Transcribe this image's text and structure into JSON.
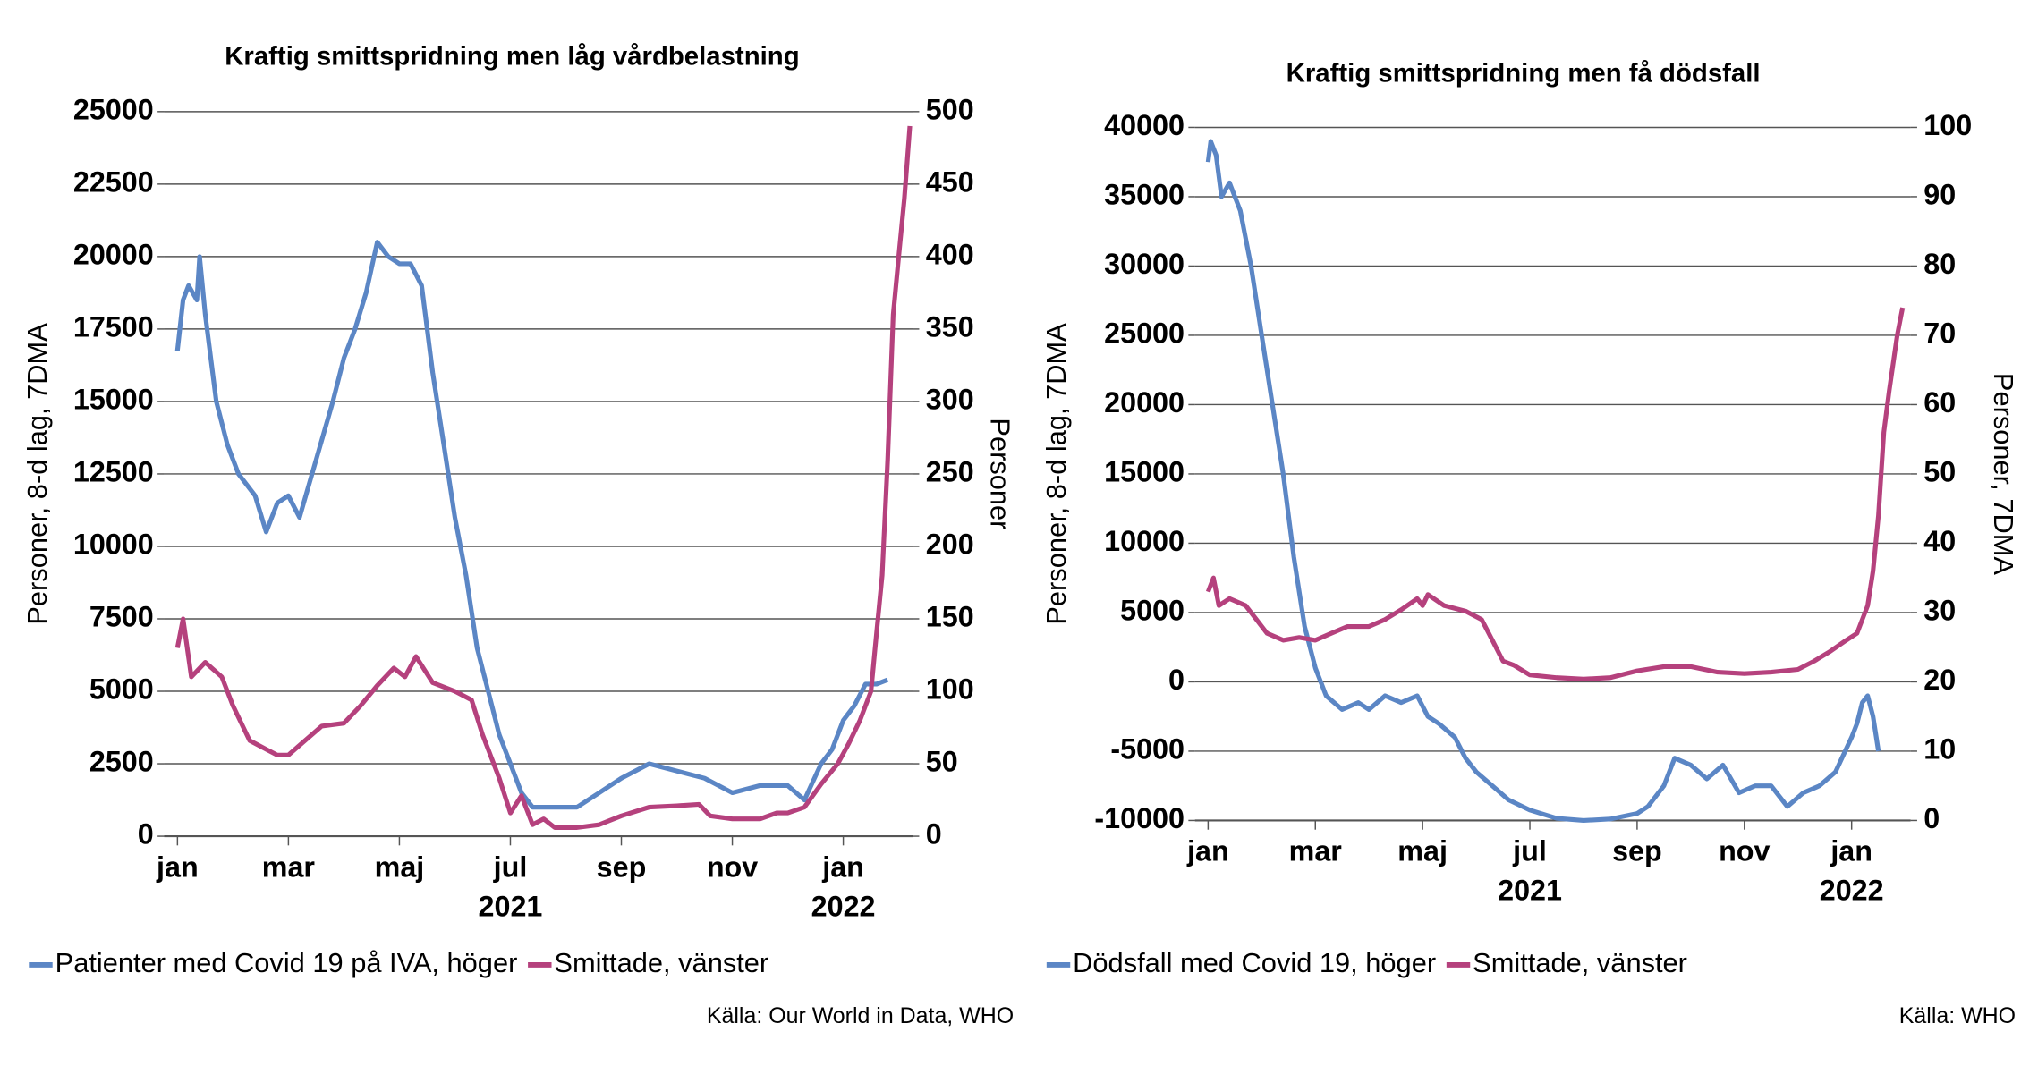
{
  "chart_data": [
    {
      "type": "line",
      "title": "Kraftig smittspridning men låg vårdbelastning",
      "ylabel": "Personer, 8-d lag, 7DMA",
      "y2label": "Personer",
      "xlim": [
        -0.24,
        13.25
      ],
      "xticks": [
        {
          "value": 0,
          "label": "jan"
        },
        {
          "value": 2,
          "label": "mar"
        },
        {
          "value": 4,
          "label": "maj"
        },
        {
          "value": 6,
          "label": "jul"
        },
        {
          "value": 8,
          "label": "sep"
        },
        {
          "value": 10,
          "label": "nov"
        },
        {
          "value": 12,
          "label": "jan"
        }
      ],
      "x_group_labels": [
        {
          "value": 6,
          "label": "2021"
        },
        {
          "value": 12,
          "label": "2022"
        }
      ],
      "ylim": [
        0,
        25000
      ],
      "yticks": [
        0,
        2500,
        5000,
        7500,
        10000,
        12500,
        15000,
        17500,
        20000,
        22500,
        25000
      ],
      "y2lim": [
        0,
        500
      ],
      "y2ticks": [
        0,
        50,
        100,
        150,
        200,
        250,
        300,
        350,
        400,
        450,
        500
      ],
      "grid": true,
      "series": [
        {
          "name": "Patienter med Covid 19 på IVA, höger",
          "color": "#5b86c5",
          "axis": "y2",
          "x": [
            0,
            0.1,
            0.2,
            0.35,
            0.4,
            0.5,
            0.7,
            0.9,
            1.1,
            1.4,
            1.6,
            1.8,
            2,
            2.2,
            2.5,
            2.8,
            3,
            3.2,
            3.4,
            3.6,
            3.8,
            4,
            4.2,
            4.4,
            4.6,
            4.8,
            5,
            5.2,
            5.4,
            5.6,
            5.8,
            6,
            6.2,
            6.4,
            6.8,
            7.2,
            7.6,
            8,
            8.5,
            9,
            9.5,
            10,
            10.5,
            11,
            11.3,
            11.6,
            11.8,
            12,
            12.2,
            12.4,
            12.6,
            12.8
          ],
          "values": [
            335,
            370,
            380,
            370,
            400,
            360,
            300,
            270,
            250,
            235,
            210,
            230,
            235,
            220,
            260,
            300,
            330,
            350,
            375,
            410,
            400,
            395,
            395,
            380,
            320,
            270,
            220,
            180,
            130,
            100,
            70,
            50,
            30,
            20,
            20,
            20,
            30,
            40,
            50,
            45,
            40,
            30,
            35,
            35,
            25,
            50,
            60,
            80,
            90,
            105,
            105,
            108
          ]
        },
        {
          "name": "Smittade, vänster",
          "color": "#b5417d",
          "axis": "y",
          "x": [
            0,
            0.1,
            0.25,
            0.5,
            0.8,
            1,
            1.3,
            1.6,
            1.8,
            2,
            2.3,
            2.6,
            3,
            3.3,
            3.6,
            3.9,
            4.1,
            4.3,
            4.6,
            5,
            5.3,
            5.5,
            5.8,
            6,
            6.2,
            6.4,
            6.6,
            6.8,
            7.2,
            7.6,
            8,
            8.5,
            9,
            9.4,
            9.6,
            10,
            10.5,
            10.8,
            11,
            11.3,
            11.6,
            11.9,
            12.1,
            12.3,
            12.5,
            12.6,
            12.7,
            12.8,
            12.9,
            13,
            13.1,
            13.2
          ],
          "values": [
            6500,
            7500,
            5500,
            6000,
            5500,
            4500,
            3300,
            3000,
            2800,
            2800,
            3300,
            3800,
            3900,
            4500,
            5200,
            5800,
            5500,
            6200,
            5300,
            5000,
            4700,
            3500,
            2000,
            800,
            1400,
            400,
            600,
            300,
            300,
            400,
            700,
            1000,
            1050,
            1100,
            700,
            600,
            600,
            800,
            800,
            1000,
            1800,
            2500,
            3200,
            4000,
            5000,
            7000,
            9000,
            13000,
            18000,
            20000,
            22000,
            24500
          ]
        }
      ],
      "source": "Källa: Our World in Data, WHO"
    },
    {
      "type": "line",
      "title": "Kraftig smittspridning men få dödsfall",
      "ylabel": "Personer, 8-d lag, 7DMA",
      "y2label": "Personer, 7DMA",
      "xlim": [
        -0.245,
        13.1
      ],
      "xticks": [
        {
          "value": 0,
          "label": "jan"
        },
        {
          "value": 2,
          "label": "mar"
        },
        {
          "value": 4,
          "label": "maj"
        },
        {
          "value": 6,
          "label": "jul"
        },
        {
          "value": 8,
          "label": "sep"
        },
        {
          "value": 10,
          "label": "nov"
        },
        {
          "value": 12,
          "label": "jan"
        }
      ],
      "x_group_labels": [
        {
          "value": 6,
          "label": "2021"
        },
        {
          "value": 12,
          "label": "2022"
        }
      ],
      "ylim": [
        -10000,
        40000
      ],
      "yticks": [
        -10000,
        -5000,
        0,
        5000,
        10000,
        15000,
        20000,
        25000,
        30000,
        35000,
        40000
      ],
      "y2lim": [
        0,
        100
      ],
      "y2ticks": [
        0,
        10,
        20,
        30,
        40,
        50,
        60,
        70,
        80,
        90,
        100
      ],
      "grid": true,
      "series": [
        {
          "name": "Dödsfall med Covid 19, höger",
          "color": "#5b86c5",
          "axis": "y2",
          "x": [
            0,
            0.05,
            0.15,
            0.25,
            0.4,
            0.6,
            0.8,
            1,
            1.2,
            1.4,
            1.6,
            1.8,
            2,
            2.2,
            2.5,
            2.8,
            3,
            3.3,
            3.6,
            3.9,
            4.1,
            4.3,
            4.6,
            4.8,
            5,
            5.3,
            5.6,
            6,
            6.5,
            7,
            7.5,
            8,
            8.2,
            8.5,
            8.7,
            9,
            9.3,
            9.6,
            9.9,
            10.2,
            10.5,
            10.8,
            11.1,
            11.4,
            11.7,
            12,
            12.1,
            12.2,
            12.3,
            12.4,
            12.5
          ],
          "values": [
            95,
            98,
            96,
            90,
            92,
            88,
            80,
            70,
            60,
            50,
            38,
            28,
            22,
            18,
            16,
            17,
            16,
            18,
            17,
            18,
            15,
            14,
            12,
            9,
            7,
            5,
            3,
            1.5,
            0.3,
            0,
            0.2,
            1,
            2,
            5,
            9,
            8,
            6,
            8,
            4,
            5,
            5,
            2,
            4,
            5,
            7,
            12,
            14,
            17,
            18,
            15,
            10
          ]
        },
        {
          "name": "Smittade, vänster",
          "color": "#b5417d",
          "axis": "y",
          "x": [
            0,
            0.1,
            0.2,
            0.4,
            0.7,
            0.9,
            1.1,
            1.4,
            1.7,
            2,
            2.3,
            2.6,
            3,
            3.3,
            3.6,
            3.9,
            4,
            4.1,
            4.4,
            4.8,
            5.1,
            5.3,
            5.5,
            5.7,
            6,
            6.5,
            7,
            7.5,
            8,
            8.5,
            9,
            9.5,
            10,
            10.5,
            11,
            11.3,
            11.6,
            11.9,
            12.1,
            12.2,
            12.3,
            12.4,
            12.5,
            12.6,
            12.7,
            12.85,
            12.95
          ],
          "values": [
            6500,
            7500,
            5500,
            6000,
            5500,
            4500,
            3500,
            3000,
            3200,
            3000,
            3500,
            4000,
            4000,
            4500,
            5200,
            6000,
            5500,
            6300,
            5500,
            5100,
            4500,
            3000,
            1500,
            1200,
            500,
            300,
            200,
            300,
            800,
            1100,
            1100,
            700,
            600,
            700,
            900,
            1500,
            2200,
            3000,
            3500,
            4500,
            5500,
            8000,
            12000,
            18000,
            21000,
            25000,
            27000
          ]
        }
      ],
      "source": "Källa: WHO"
    }
  ]
}
